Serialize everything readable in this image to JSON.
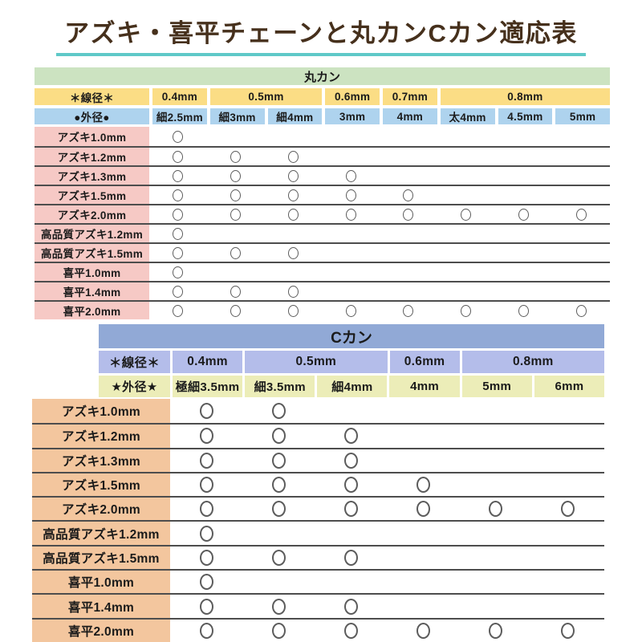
{
  "title": "アズキ・喜平チェーンと丸カンCカン適応表",
  "mark_symbol": "○",
  "colors": {
    "title_text": "#46301c",
    "title_underline": "#5fc9c8",
    "line": "#4d4d4d",
    "mark": "#5c5c5c",
    "t1_bar": "#cce3c1",
    "t1_wire": "#fbdd85",
    "t1_outer": "#aed3ee",
    "t1_label": "#f6c9c5",
    "t2_bar": "#91a9d6",
    "t2_wire": "#b4bdea",
    "t2_outer": "#ecedb8",
    "t2_label": "#f3c69e"
  },
  "tables": [
    {
      "header": "丸カン",
      "wire_label": "＊線径＊",
      "wire_groups": [
        {
          "label": "0.4mm",
          "span": 1
        },
        {
          "label": "0.5mm",
          "span": 2
        },
        {
          "label": "0.6mm",
          "span": 1
        },
        {
          "label": "0.7mm",
          "span": 1
        },
        {
          "label": "0.8mm",
          "span": 3
        }
      ],
      "outer_label": "●外径●",
      "outer_cols": [
        "細2.5mm",
        "細3mm",
        "細4mm",
        "3mm",
        "4mm",
        "太4mm",
        "4.5mm",
        "5mm"
      ],
      "rows": [
        {
          "label": "アズキ1.0mm",
          "marks": [
            1,
            0,
            0,
            0,
            0,
            0,
            0,
            0
          ]
        },
        {
          "label": "アズキ1.2mm",
          "marks": [
            1,
            1,
            1,
            0,
            0,
            0,
            0,
            0
          ]
        },
        {
          "label": "アズキ1.3mm",
          "marks": [
            1,
            1,
            1,
            1,
            0,
            0,
            0,
            0
          ]
        },
        {
          "label": "アズキ1.5mm",
          "marks": [
            1,
            1,
            1,
            1,
            1,
            0,
            0,
            0
          ]
        },
        {
          "label": "アズキ2.0mm",
          "marks": [
            1,
            1,
            1,
            1,
            1,
            1,
            1,
            1
          ]
        },
        {
          "label": "高品質アズキ1.2mm",
          "marks": [
            1,
            0,
            0,
            0,
            0,
            0,
            0,
            0
          ]
        },
        {
          "label": "高品質アズキ1.5mm",
          "marks": [
            1,
            1,
            1,
            0,
            0,
            0,
            0,
            0
          ]
        },
        {
          "label": "喜平1.0mm",
          "marks": [
            1,
            0,
            0,
            0,
            0,
            0,
            0,
            0
          ]
        },
        {
          "label": "喜平1.4mm",
          "marks": [
            1,
            1,
            1,
            0,
            0,
            0,
            0,
            0
          ]
        },
        {
          "label": "喜平2.0mm",
          "marks": [
            1,
            1,
            1,
            1,
            1,
            1,
            1,
            1
          ]
        }
      ]
    },
    {
      "header": "Cカン",
      "wire_label": "＊線径＊",
      "wire_groups": [
        {
          "label": "0.4mm",
          "span": 1
        },
        {
          "label": "0.5mm",
          "span": 2
        },
        {
          "label": "0.6mm",
          "span": 1
        },
        {
          "label": "0.8mm",
          "span": 2
        }
      ],
      "outer_label": "★外径★",
      "outer_cols": [
        "極細3.5mm",
        "細3.5mm",
        "細4mm",
        "4mm",
        "5mm",
        "6mm"
      ],
      "rows": [
        {
          "label": "アズキ1.0mm",
          "marks": [
            1,
            1,
            0,
            0,
            0,
            0
          ]
        },
        {
          "label": "アズキ1.2mm",
          "marks": [
            1,
            1,
            1,
            0,
            0,
            0
          ]
        },
        {
          "label": "アズキ1.3mm",
          "marks": [
            1,
            1,
            1,
            0,
            0,
            0
          ]
        },
        {
          "label": "アズキ1.5mm",
          "marks": [
            1,
            1,
            1,
            1,
            0,
            0
          ]
        },
        {
          "label": "アズキ2.0mm",
          "marks": [
            1,
            1,
            1,
            1,
            1,
            1
          ]
        },
        {
          "label": "高品質アズキ1.2mm",
          "marks": [
            1,
            0,
            0,
            0,
            0,
            0
          ]
        },
        {
          "label": "高品質アズキ1.5mm",
          "marks": [
            1,
            1,
            1,
            0,
            0,
            0
          ]
        },
        {
          "label": "喜平1.0mm",
          "marks": [
            1,
            0,
            0,
            0,
            0,
            0
          ]
        },
        {
          "label": "喜平1.4mm",
          "marks": [
            1,
            1,
            1,
            0,
            0,
            0
          ]
        },
        {
          "label": "喜平2.0mm",
          "marks": [
            1,
            1,
            1,
            1,
            1,
            1
          ]
        }
      ]
    }
  ]
}
